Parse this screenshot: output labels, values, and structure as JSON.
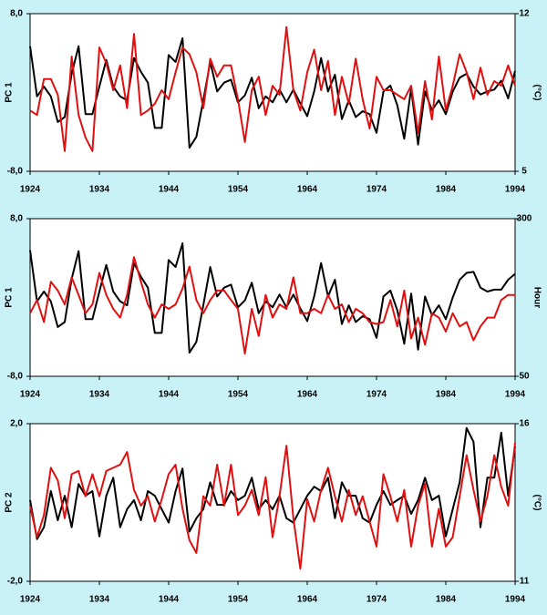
{
  "chart_data": [
    {
      "type": "line",
      "ylabel": "PC 1",
      "y2label": "(°C)",
      "x": [
        1924,
        1925,
        1926,
        1927,
        1928,
        1929,
        1930,
        1931,
        1932,
        1933,
        1934,
        1935,
        1936,
        1937,
        1938,
        1939,
        1940,
        1941,
        1942,
        1943,
        1944,
        1945,
        1946,
        1947,
        1948,
        1949,
        1950,
        1951,
        1952,
        1953,
        1954,
        1955,
        1956,
        1957,
        1958,
        1959,
        1960,
        1961,
        1962,
        1963,
        1964,
        1965,
        1966,
        1967,
        1968,
        1969,
        1970,
        1971,
        1972,
        1973,
        1974,
        1975,
        1976,
        1977,
        1978,
        1979,
        1980,
        1981,
        1982,
        1983,
        1984,
        1985,
        1986,
        1987,
        1988,
        1989,
        1990,
        1991,
        1992,
        1993,
        1994
      ],
      "xlim": [
        1924,
        1994
      ],
      "xticks": [
        1924,
        1934,
        1944,
        1954,
        1964,
        1974,
        1984,
        1994
      ],
      "ylim": [
        -8,
        8
      ],
      "yticks": [
        {
          "value": 8,
          "label": "8,0"
        },
        {
          "value": -8,
          "label": "-8,0"
        }
      ],
      "y2lim": [
        5,
        12
      ],
      "y2ticks": [
        12,
        5
      ],
      "series": [
        {
          "color": "#000000",
          "values": [
            4.7,
            -0.4,
            0.6,
            -0.4,
            -3.0,
            -2.5,
            1.9,
            4.7,
            -2.2,
            -2.2,
            0.6,
            3.3,
            0.6,
            -0.4,
            -0.8,
            3.5,
            2.1,
            1.0,
            -3.6,
            -3.6,
            3.8,
            3.1,
            5.5,
            -5.6,
            -4.5,
            -0.8,
            3.1,
            0.1,
            1.0,
            1.3,
            -1.0,
            -0.3,
            1.5,
            -1.6,
            -0.4,
            -1.0,
            0.3,
            -1.0,
            0.3,
            -1.1,
            -2.4,
            0.1,
            3.5,
            0.1,
            1.8,
            -2.7,
            -0.8,
            -2.5,
            -1.9,
            -2.2,
            -4.1,
            0.1,
            0.7,
            -1.3,
            -4.7,
            0.4,
            -5.3,
            0.1,
            -1.8,
            -0.8,
            -2.2,
            0.1,
            1.5,
            1.9,
            0.6,
            -0.2,
            0.1,
            0.3,
            1.2,
            -0.6,
            2.2
          ]
        },
        {
          "color": "#e01010",
          "axis": "y2",
          "values": [
            7.7,
            7.5,
            9.1,
            9.1,
            8.4,
            5.9,
            10.1,
            7.5,
            6.5,
            5.9,
            10.5,
            9.8,
            8.6,
            9.7,
            7.8,
            11.1,
            7.5,
            7.7,
            8.0,
            8.6,
            8.2,
            9.4,
            10.5,
            10.2,
            9.4,
            7.8,
            10.0,
            9.2,
            9.7,
            9.7,
            8.2,
            6.3,
            8.6,
            9.2,
            7.5,
            8.8,
            8.4,
            11.4,
            8.6,
            7.7,
            9.4,
            10.4,
            8.6,
            9.9,
            7.5,
            9.2,
            8.0,
            10.0,
            8.2,
            6.9,
            9.2,
            8.6,
            8.6,
            8.4,
            8.2,
            8.8,
            6.7,
            9.0,
            7.3,
            10.1,
            7.7,
            8.8,
            10.2,
            9.4,
            8.2,
            9.6,
            8.4,
            9.0,
            8.8,
            9.7,
            8.8
          ]
        }
      ]
    },
    {
      "type": "line",
      "ylabel": "PC 1",
      "y2label": "Hour",
      "x": [
        1924,
        1925,
        1926,
        1927,
        1928,
        1929,
        1930,
        1931,
        1932,
        1933,
        1934,
        1935,
        1936,
        1937,
        1938,
        1939,
        1940,
        1941,
        1942,
        1943,
        1944,
        1945,
        1946,
        1947,
        1948,
        1949,
        1950,
        1951,
        1952,
        1953,
        1954,
        1955,
        1956,
        1957,
        1958,
        1959,
        1960,
        1961,
        1962,
        1963,
        1964,
        1965,
        1966,
        1967,
        1968,
        1969,
        1970,
        1971,
        1972,
        1973,
        1974,
        1975,
        1976,
        1977,
        1978,
        1979,
        1980,
        1981,
        1982,
        1983,
        1984,
        1985,
        1986,
        1987,
        1988,
        1989,
        1990,
        1991,
        1992,
        1993,
        1994
      ],
      "xlim": [
        1924,
        1994
      ],
      "xticks": [
        1924,
        1934,
        1944,
        1954,
        1964,
        1974,
        1984,
        1994
      ],
      "ylim": [
        -8,
        8
      ],
      "yticks": [
        {
          "value": 8,
          "label": "8,0"
        },
        {
          "value": -8,
          "label": "-8,0"
        }
      ],
      "y2lim": [
        50,
        300
      ],
      "y2ticks": [
        300,
        50
      ],
      "series": [
        {
          "color": "#000000",
          "values": [
            4.8,
            -0.4,
            0.6,
            -0.4,
            -3.0,
            -2.5,
            1.9,
            4.7,
            -2.2,
            -2.2,
            0.6,
            3.3,
            0.6,
            -0.4,
            -0.8,
            3.5,
            2.1,
            1.0,
            -3.6,
            -3.6,
            3.8,
            3.1,
            5.5,
            -5.6,
            -4.5,
            -0.8,
            3.1,
            0.1,
            1.0,
            1.3,
            -1.0,
            -0.3,
            1.5,
            -1.6,
            -0.4,
            -1.0,
            0.3,
            -1.0,
            0.3,
            -1.1,
            -2.4,
            0.1,
            3.5,
            0.1,
            1.8,
            -2.7,
            -0.8,
            -2.5,
            -1.9,
            -2.2,
            -4.1,
            0.1,
            0.7,
            -1.3,
            -4.7,
            0.4,
            -5.3,
            0.1,
            -1.8,
            -0.8,
            -2.2,
            0.0,
            1.8,
            2.5,
            2.6,
            1.0,
            0.6,
            0.8,
            0.8,
            1.8,
            2.4
          ]
        },
        {
          "color": "#e01010",
          "axis": "y2",
          "values": [
            150,
            171,
            136,
            200,
            186,
            164,
            207,
            179,
            150,
            164,
            214,
            179,
            157,
            143,
            179,
            239,
            200,
            164,
            143,
            164,
            157,
            164,
            189,
            224,
            171,
            150,
            171,
            186,
            186,
            171,
            157,
            86,
            157,
            114,
            179,
            143,
            164,
            157,
            207,
            150,
            150,
            157,
            150,
            179,
            157,
            164,
            136,
            157,
            150,
            136,
            133,
            136,
            171,
            129,
            186,
            110,
            143,
            100,
            150,
            143,
            121,
            150,
            129,
            136,
            107,
            129,
            143,
            143,
            171,
            179,
            179
          ]
        }
      ]
    },
    {
      "type": "line",
      "ylabel": "PC 2",
      "y2label": "(°C)",
      "x": [
        1924,
        1925,
        1926,
        1927,
        1928,
        1929,
        1930,
        1931,
        1932,
        1933,
        1934,
        1935,
        1936,
        1937,
        1938,
        1939,
        1940,
        1941,
        1942,
        1943,
        1944,
        1945,
        1946,
        1947,
        1948,
        1949,
        1950,
        1951,
        1952,
        1953,
        1954,
        1955,
        1956,
        1957,
        1958,
        1959,
        1960,
        1961,
        1962,
        1963,
        1964,
        1965,
        1966,
        1967,
        1968,
        1969,
        1970,
        1971,
        1972,
        1973,
        1974,
        1975,
        1976,
        1977,
        1978,
        1979,
        1980,
        1981,
        1982,
        1983,
        1984,
        1985,
        1986,
        1987,
        1988,
        1989,
        1990,
        1991,
        1992,
        1993,
        1994
      ],
      "xlim": [
        1924,
        1994
      ],
      "xticks": [
        1924,
        1934,
        1944,
        1954,
        1964,
        1974,
        1984,
        1994
      ],
      "ylim": [
        -2,
        2
      ],
      "yticks": [
        {
          "value": 2,
          "label": "2,0"
        },
        {
          "value": -2,
          "label": "-2,0"
        }
      ],
      "y2lim": [
        11,
        16
      ],
      "y2ticks": [
        16,
        11
      ],
      "series": [
        {
          "color": "#000000",
          "values": [
            0.06,
            -0.93,
            -0.63,
            0.29,
            -0.45,
            0.17,
            -0.63,
            0.47,
            0.17,
            0.29,
            -0.86,
            0.17,
            0.63,
            -0.63,
            -0.17,
            0.06,
            -0.45,
            0.29,
            0.17,
            -0.17,
            -0.51,
            0.29,
            0.86,
            -0.74,
            -0.4,
            -0.17,
            0.51,
            -0.06,
            -0.06,
            0.29,
            0.06,
            0.17,
            0.63,
            -0.17,
            0.06,
            -0.17,
            0.17,
            -0.4,
            -0.51,
            -0.17,
            0.17,
            0.4,
            0.29,
            0.63,
            -0.4,
            0.51,
            0.17,
            0.17,
            -0.4,
            -0.51,
            -0.06,
            0.29,
            -0.06,
            0.06,
            0.17,
            -0.29,
            0.06,
            0.63,
            0.06,
            0.17,
            -0.86,
            -0.17,
            0.51,
            1.89,
            1.54,
            -0.63,
            0.63,
            0.63,
            1.77,
            0.17,
            1.43
          ]
        },
        {
          "color": "#e01010",
          "axis": "y2",
          "values": [
            13.4,
            12.4,
            13.1,
            14.6,
            14.2,
            13.0,
            14.4,
            14.5,
            13.7,
            14.4,
            13.7,
            14.5,
            14.6,
            14.7,
            15.1,
            13.9,
            13.4,
            13.7,
            12.9,
            13.6,
            14.4,
            14.7,
            13.3,
            12.3,
            11.9,
            13.7,
            13.4,
            14.7,
            13.4,
            14.7,
            13.1,
            13.4,
            13.9,
            13.1,
            14.3,
            12.4,
            13.7,
            15.3,
            13.0,
            11.4,
            13.6,
            12.9,
            13.9,
            14.6,
            13.7,
            12.9,
            13.9,
            13.1,
            13.7,
            12.9,
            12.1,
            14.4,
            13.7,
            12.9,
            13.9,
            12.1,
            13.4,
            14.1,
            12.1,
            13.3,
            12.1,
            12.4,
            13.7,
            15.0,
            13.9,
            12.9,
            13.7,
            15.0,
            14.0,
            13.4,
            15.4
          ]
        }
      ]
    }
  ]
}
